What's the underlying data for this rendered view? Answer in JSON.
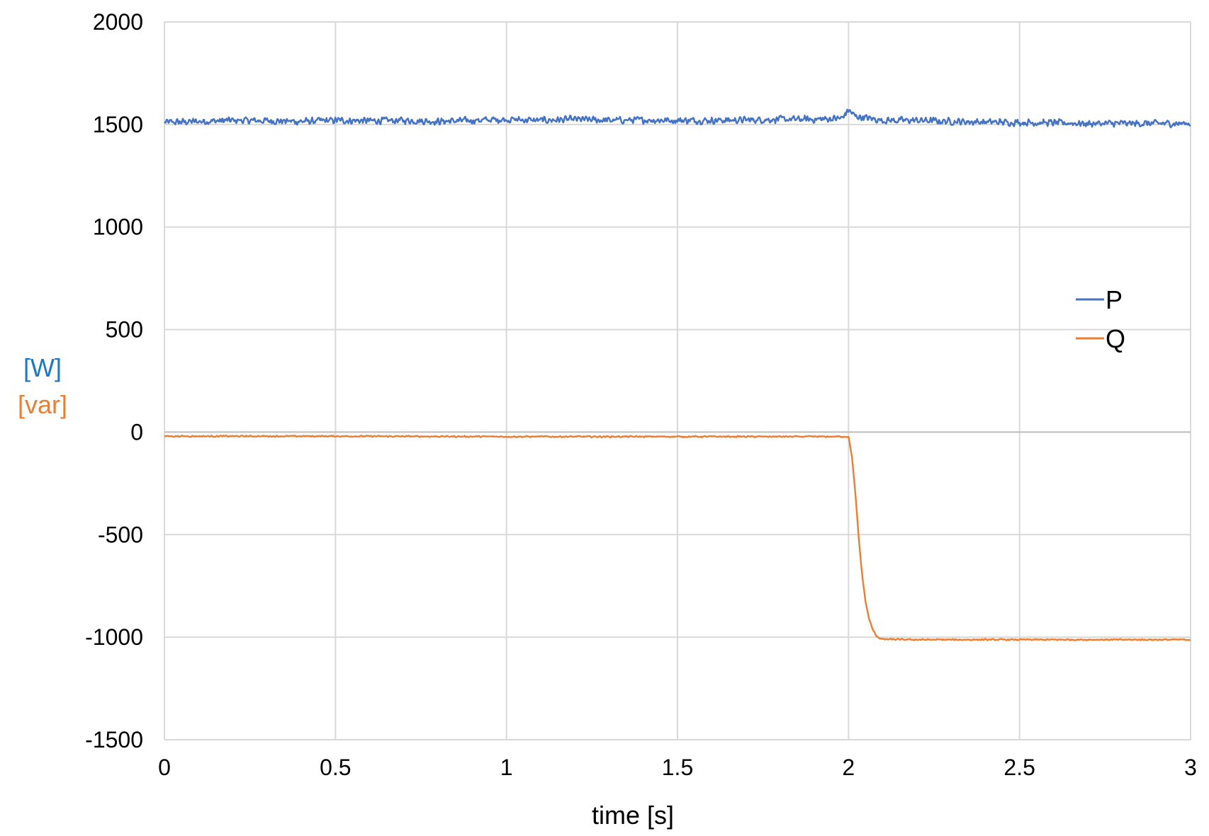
{
  "chart_data": {
    "type": "line",
    "title": "",
    "xlabel": "time [s]",
    "ylabel_lines": [
      {
        "text": "[W]",
        "color": "#1f77c8"
      },
      {
        "text": "[var]",
        "color": "#ed7d31"
      }
    ],
    "xlim": [
      0,
      3
    ],
    "ylim": [
      -1500,
      2000
    ],
    "x_ticks": [
      "0",
      "0.5",
      "1",
      "1.5",
      "2",
      "2.5",
      "3"
    ],
    "x_tick_values": [
      0,
      0.5,
      1,
      1.5,
      2,
      2.5,
      3
    ],
    "y_ticks": [
      "2000",
      "1500",
      "1000",
      "500",
      "0",
      "-500",
      "-1000",
      "-1500"
    ],
    "y_tick_values": [
      2000,
      1500,
      1000,
      500,
      0,
      -500,
      -1000,
      -1500
    ],
    "grid": true,
    "legend_position": "right",
    "series": [
      {
        "name": "P",
        "color": "#4472c4",
        "x": [
          0,
          0.1,
          0.2,
          0.3,
          0.4,
          0.5,
          0.6,
          0.7,
          0.8,
          0.9,
          1.0,
          1.1,
          1.2,
          1.3,
          1.4,
          1.5,
          1.6,
          1.7,
          1.8,
          1.9,
          1.98,
          2.0,
          2.02,
          2.1,
          2.2,
          2.3,
          2.4,
          2.5,
          2.6,
          2.7,
          2.8,
          2.9,
          3.0
        ],
        "y": [
          1510,
          1515,
          1520,
          1518,
          1515,
          1520,
          1518,
          1520,
          1515,
          1520,
          1525,
          1520,
          1525,
          1520,
          1522,
          1520,
          1520,
          1522,
          1525,
          1525,
          1530,
          1570,
          1540,
          1520,
          1520,
          1515,
          1512,
          1510,
          1508,
          1505,
          1505,
          1505,
          1505
        ],
        "noise_amplitude": 20
      },
      {
        "name": "Q",
        "color": "#ed7d31",
        "x": [
          0,
          0.5,
          1.0,
          1.5,
          2.0,
          2.01,
          2.02,
          2.03,
          2.04,
          2.05,
          2.06,
          2.07,
          2.08,
          2.09,
          2.1,
          2.2,
          2.5,
          3.0
        ],
        "y": [
          -20,
          -20,
          -22,
          -22,
          -22,
          -120,
          -300,
          -520,
          -700,
          -830,
          -910,
          -960,
          -990,
          -1005,
          -1010,
          -1012,
          -1012,
          -1012
        ],
        "noise_amplitude": 4
      }
    ]
  }
}
